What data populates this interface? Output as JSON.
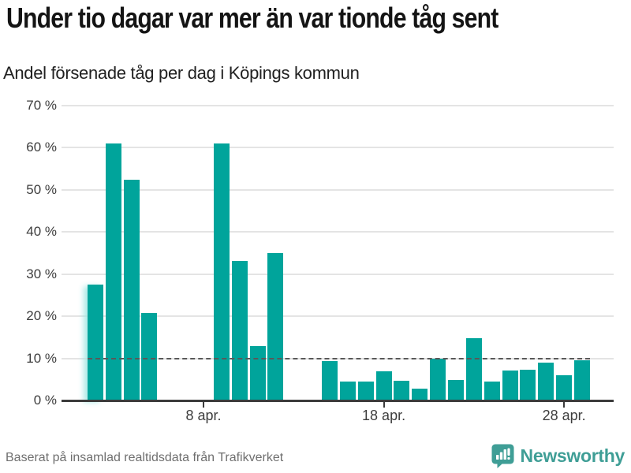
{
  "title": "Under tio dagar var mer än var tionde tåg sent",
  "subtitle": "Andel försenade tåg per dag i Köpings kommun",
  "footer": {
    "source": "Baserat på insamlad realtidsdata från Trafikverket",
    "brand": "Newsworthy"
  },
  "colors": {
    "bar": "#00a49b",
    "brand": "#3f9e96",
    "grid": "#e4e4e4",
    "axis": "#3b3b3b",
    "reference_line": "#595959",
    "title_text": "#141414",
    "tick_text": "#3d3d3d",
    "footer_text": "#6f6f6f"
  },
  "chart_data": {
    "type": "bar",
    "title": "Under tio dagar var mer än var tionde tåg sent",
    "subtitle": "Andel försenade tåg per dag i Köpings kommun",
    "unit": "%",
    "xlabel": "",
    "ylabel": "Andel försenade tåg",
    "ylim": [
      0,
      70
    ],
    "grid": true,
    "legend": false,
    "reference_line": {
      "value": 10,
      "style": "dashed"
    },
    "ytick_labels": [
      "0 %",
      "10 %",
      "20 %",
      "30 %",
      "40 %",
      "50 %",
      "60 %",
      "70 %"
    ],
    "x_ticks": [
      {
        "day": 8,
        "label": "8 apr."
      },
      {
        "day": 18,
        "label": "18 apr."
      },
      {
        "day": 28,
        "label": "28 apr."
      }
    ],
    "x_domain_days_april": [
      1,
      30
    ],
    "points": [
      {
        "day": 2,
        "label": "2 apr.",
        "value": 27.5
      },
      {
        "day": 3,
        "label": "3 apr.",
        "value": 61
      },
      {
        "day": 4,
        "label": "4 apr.",
        "value": 52.3
      },
      {
        "day": 5,
        "label": "5 apr.",
        "value": 20.7
      },
      {
        "day": 9,
        "label": "9 apr.",
        "value": 61
      },
      {
        "day": 10,
        "label": "10 apr.",
        "value": 33
      },
      {
        "day": 11,
        "label": "11 apr.",
        "value": 12.9
      },
      {
        "day": 12,
        "label": "12 apr.",
        "value": 35
      },
      {
        "day": 15,
        "label": "15 apr.",
        "value": 9.3
      },
      {
        "day": 16,
        "label": "16 apr.",
        "value": 4.5
      },
      {
        "day": 17,
        "label": "17 apr.",
        "value": 4.5
      },
      {
        "day": 18,
        "label": "18 apr.",
        "value": 7
      },
      {
        "day": 19,
        "label": "19 apr.",
        "value": 4.7
      },
      {
        "day": 20,
        "label": "20 apr.",
        "value": 2.8
      },
      {
        "day": 21,
        "label": "21 apr.",
        "value": 10
      },
      {
        "day": 22,
        "label": "22 apr.",
        "value": 4.8
      },
      {
        "day": 23,
        "label": "23 apr.",
        "value": 14.8
      },
      {
        "day": 24,
        "label": "24 apr.",
        "value": 4.5
      },
      {
        "day": 25,
        "label": "25 apr.",
        "value": 7.1
      },
      {
        "day": 26,
        "label": "26 apr.",
        "value": 7.3
      },
      {
        "day": 27,
        "label": "27 apr.",
        "value": 9
      },
      {
        "day": 28,
        "label": "28 apr.",
        "value": 5.9
      },
      {
        "day": 29,
        "label": "29 apr.",
        "value": 9.5
      }
    ]
  }
}
